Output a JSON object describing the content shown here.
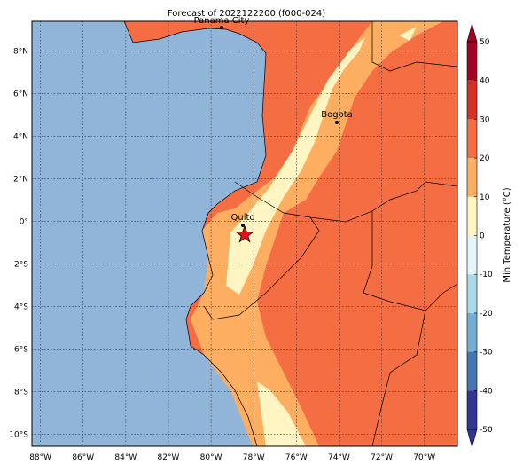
{
  "map": {
    "title": "Forecast of 2022122200 (f000-024)",
    "xticks": [
      {
        "value": -88,
        "label": "88°W"
      },
      {
        "value": -86,
        "label": "86°W"
      },
      {
        "value": -84,
        "label": "84°W"
      },
      {
        "value": -82,
        "label": "82°W"
      },
      {
        "value": -80,
        "label": "80°W"
      },
      {
        "value": -78,
        "label": "78°W"
      },
      {
        "value": -76,
        "label": "76°W"
      },
      {
        "value": -74,
        "label": "74°W"
      },
      {
        "value": -72,
        "label": "72°W"
      },
      {
        "value": -70,
        "label": "70°W"
      }
    ],
    "yticks": [
      {
        "value": 8,
        "label": "8°N"
      },
      {
        "value": 6,
        "label": "6°N"
      },
      {
        "value": 4,
        "label": "4°N"
      },
      {
        "value": 2,
        "label": "2°N"
      },
      {
        "value": 0,
        "label": "0°"
      },
      {
        "value": -2,
        "label": "2°S"
      },
      {
        "value": -4,
        "label": "4°S"
      },
      {
        "value": -6,
        "label": "6°S"
      },
      {
        "value": -8,
        "label": "8°S"
      },
      {
        "value": -10,
        "label": "10°S"
      }
    ],
    "grid": true,
    "cities": [
      "Panama City",
      "Bogota",
      "Quito"
    ],
    "colorbar": {
      "label": "Min Temperature (°C)",
      "ticks": [
        50,
        40,
        30,
        20,
        10,
        0,
        -10,
        -20,
        -30,
        -40,
        -50
      ],
      "colors": [
        "#a50026",
        "#d73027",
        "#f46d43",
        "#fdae61",
        "#fff5c2",
        "#e6f5fa",
        "#abd9e9",
        "#74add1",
        "#4575b4",
        "#313695"
      ]
    }
  }
}
